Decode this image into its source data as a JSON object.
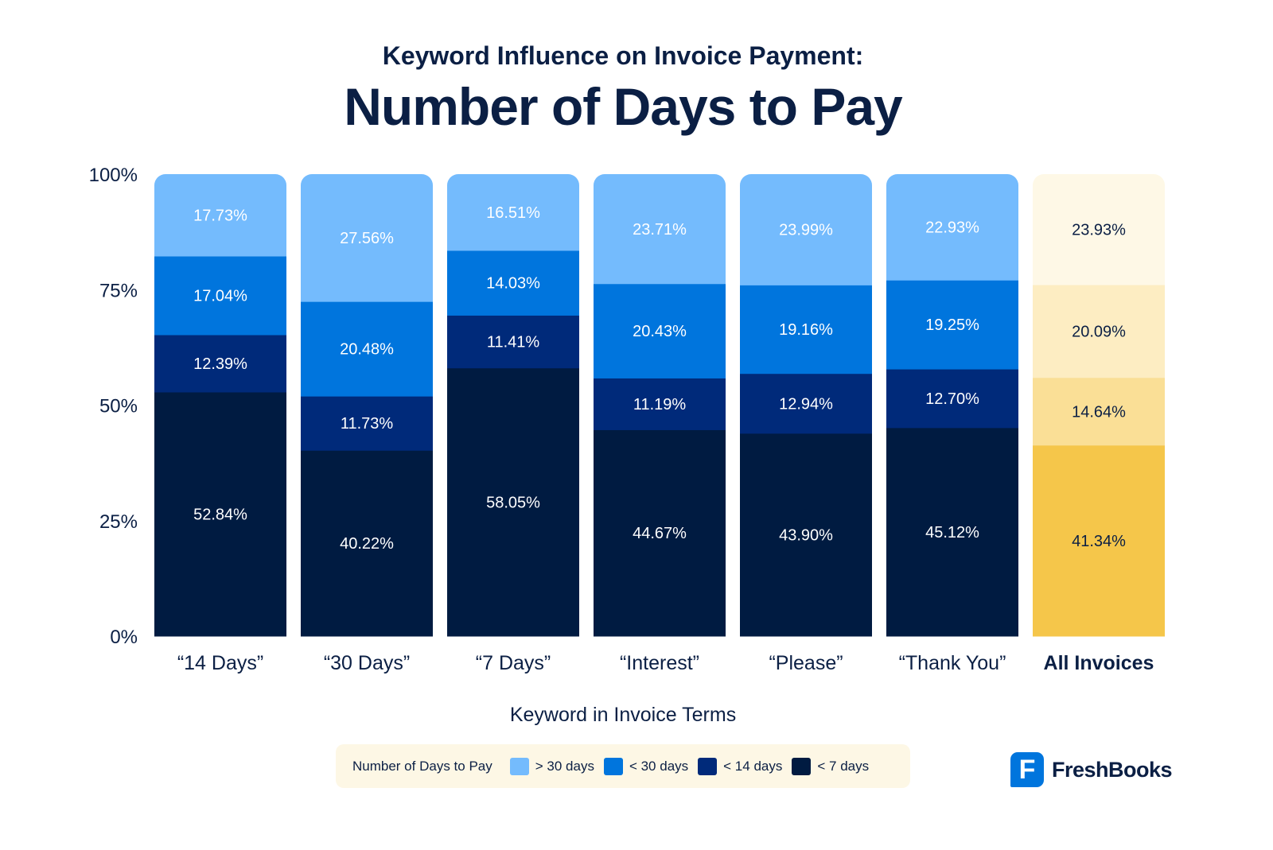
{
  "chart_data": {
    "type": "stacked-bar",
    "subtitle": "Keyword Influence on Invoice Payment:",
    "title": "Number of Days to Pay",
    "xlabel": "Keyword in Invoice Terms",
    "ylabel": "",
    "ylim": [
      0,
      100
    ],
    "yticks": [
      "0%",
      "25%",
      "50%",
      "75%",
      "100%"
    ],
    "categories": [
      "“14 Days”",
      "“30 Days”",
      "“7 Days”",
      "“Interest”",
      "“Please”",
      "“Thank You”",
      "All Invoices"
    ],
    "highlight_category": "All Invoices",
    "legend_title": "Number of Days to Pay",
    "legend_position": "bottom",
    "series": [
      {
        "name": "< 7 days",
        "color": "#001b41",
        "highlight_color": "#f5c64a",
        "values": [
          52.84,
          40.22,
          58.05,
          44.67,
          43.9,
          45.12,
          41.34
        ]
      },
      {
        "name": "< 14 days",
        "color": "#002a7a",
        "highlight_color": "#fadf96",
        "values": [
          12.39,
          11.73,
          11.41,
          11.19,
          12.94,
          12.7,
          14.64
        ]
      },
      {
        "name": "< 30 days",
        "color": "#0075dd",
        "highlight_color": "#fdedc2",
        "values": [
          17.04,
          20.48,
          14.03,
          20.43,
          19.16,
          19.25,
          20.09
        ]
      },
      {
        "name": "> 30 days",
        "color": "#74bbfd",
        "highlight_color": "#fef8e6",
        "values": [
          17.73,
          27.56,
          16.51,
          23.71,
          23.99,
          22.93,
          23.93
        ]
      }
    ],
    "grid": false
  },
  "legend": {
    "title": "Number of Days to Pay",
    "items": [
      {
        "label": "> 30 days",
        "color": "#74bbfd"
      },
      {
        "label": "< 30 days",
        "color": "#0075dd"
      },
      {
        "label": "< 14 days",
        "color": "#002a7a"
      },
      {
        "label": "< 7 days",
        "color": "#001b41"
      }
    ]
  },
  "brand": {
    "name": "FreshBooks",
    "mark": "F",
    "color": "#0075dd"
  }
}
